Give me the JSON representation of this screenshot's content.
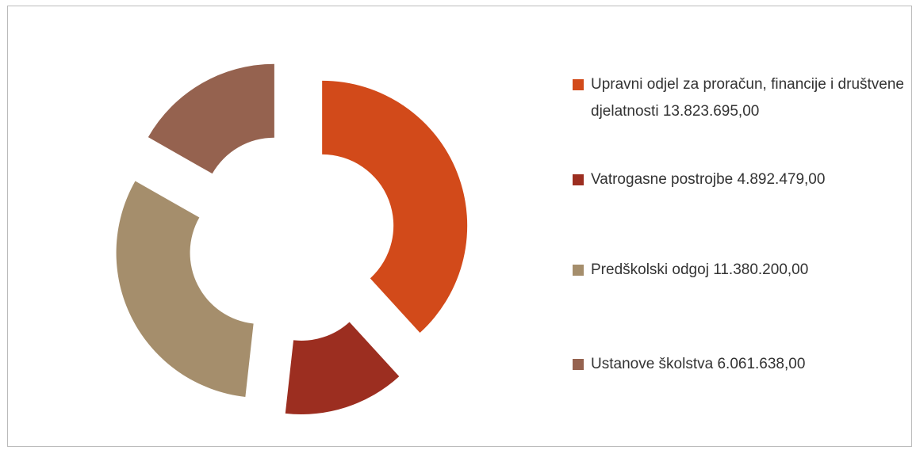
{
  "chart_data": {
    "type": "donut",
    "categories": [
      "Upravni odjel za proračun, financije i društvene djelatnosti",
      "Vatrogasne postrojbe",
      "Predškolski odgoj",
      "Ustanove školstva"
    ],
    "values": [
      13823695,
      4892479,
      11380200,
      6061638
    ],
    "value_labels": [
      "13.823.695,00",
      "4.892.479,00",
      "11.380.200,00",
      "6.061.638,00"
    ],
    "colors": [
      "#d24a1a",
      "#9c2e20",
      "#a58e6c",
      "#95624f"
    ],
    "legend": "right"
  }
}
